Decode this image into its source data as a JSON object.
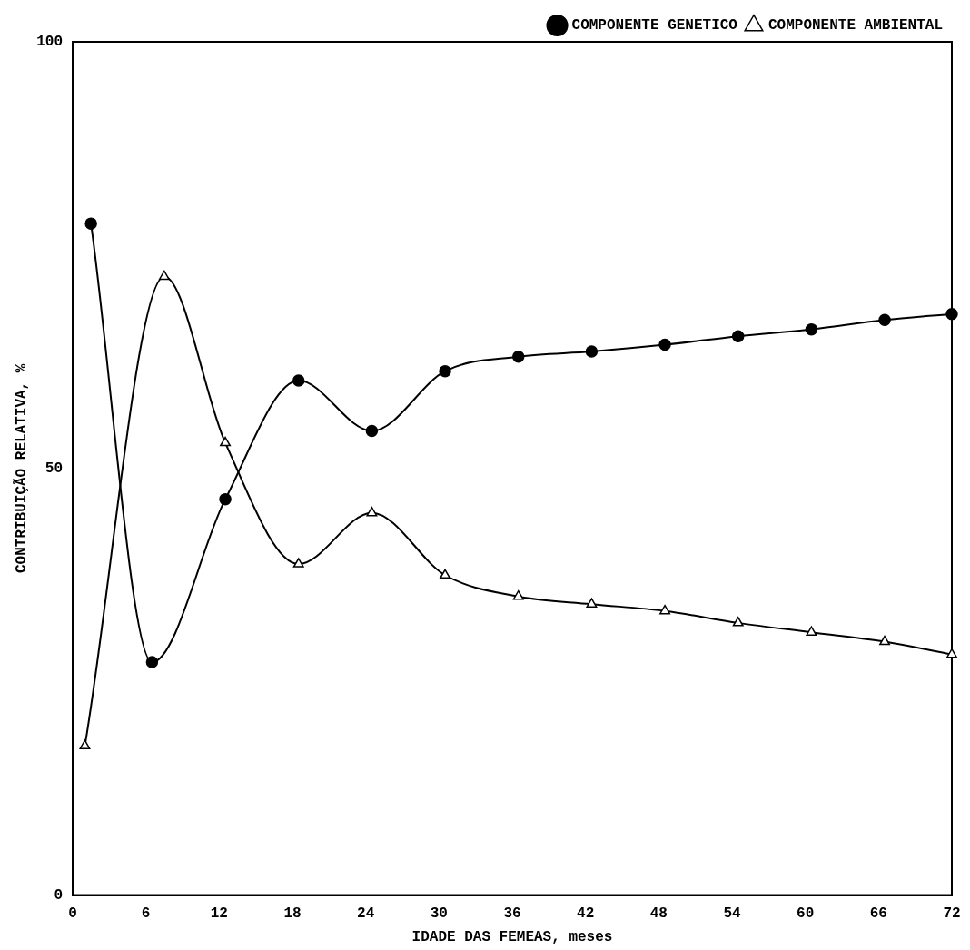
{
  "chart_data": {
    "type": "line",
    "xlabel": "IDADE DAS FEMEAS, meses",
    "ylabel": "CONTRIBUIÇÃO RELATIVA, %",
    "xlim": [
      0,
      72
    ],
    "xticks": [
      0,
      6,
      12,
      18,
      24,
      30,
      36,
      42,
      48,
      54,
      60,
      66,
      72
    ],
    "ylim": [
      0,
      100
    ],
    "yticks": [
      0,
      50,
      100
    ],
    "grid": false,
    "legend": "top right",
    "line_style": "solid",
    "series": [
      {
        "name": "COMPONENTE GENETICO",
        "color": "#000000",
        "marker": "circle",
        "x": [
          1.5,
          6.5,
          12.5,
          18.5,
          24.5,
          30.5,
          36.5,
          42.5,
          48.5,
          54.5,
          60.5,
          66.5,
          72
        ],
        "values": [
          78.7,
          27.3,
          46.4,
          60.3,
          54.4,
          61.4,
          63.1,
          63.7,
          64.5,
          65.5,
          66.3,
          67.4,
          68.1
        ]
      },
      {
        "name": "COMPONENTE AMBIENTAL",
        "color": "#000000",
        "marker": "triangle",
        "x": [
          1,
          7.5,
          12.5,
          18.5,
          24.5,
          30.5,
          36.5,
          42.5,
          48.5,
          54.5,
          60.5,
          66.5,
          72
        ],
        "values": [
          17.5,
          72.5,
          53.0,
          38.8,
          44.8,
          37.5,
          35.0,
          34.1,
          33.3,
          31.9,
          30.8,
          29.7,
          28.2
        ]
      }
    ]
  }
}
